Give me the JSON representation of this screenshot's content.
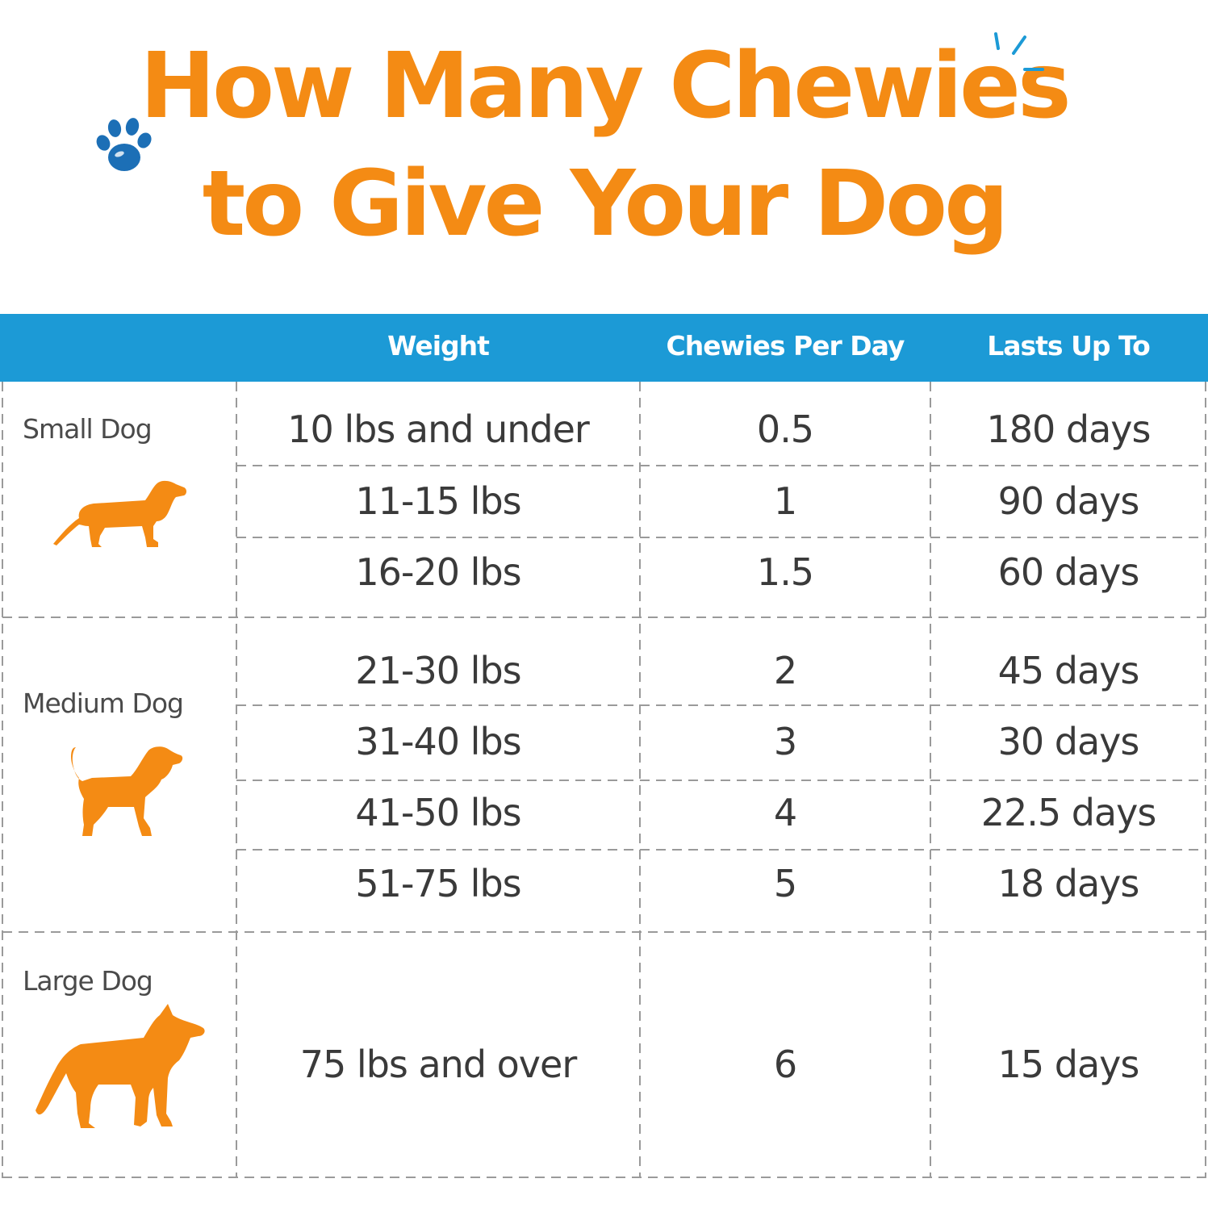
{
  "title": {
    "line1": "How Many Chewies",
    "line2": "to Give Your Dog"
  },
  "colors": {
    "accent_orange": "#f48b14",
    "header_blue": "#1c9ad6",
    "paw_blue": "#1c6fb6",
    "text": "#3a3a3a",
    "divider": "#9a9a9a"
  },
  "icons": [
    "paw-icon",
    "sparkle-icon",
    "small-dog-icon",
    "medium-dog-icon",
    "large-dog-icon"
  ],
  "table": {
    "headers": {
      "weight": "Weight",
      "chewies": "Chewies Per Day",
      "lasts": "Lasts Up To"
    },
    "groups": [
      {
        "label": "Small Dog",
        "rows": [
          {
            "weight": "10 lbs and under",
            "chewies": "0.5",
            "lasts": "180 days"
          },
          {
            "weight": "11-15 lbs",
            "chewies": "1",
            "lasts": "90 days"
          },
          {
            "weight": "16-20 lbs",
            "chewies": "1.5",
            "lasts": "60 days"
          }
        ]
      },
      {
        "label": "Medium Dog",
        "rows": [
          {
            "weight": "21-30 lbs",
            "chewies": "2",
            "lasts": "45 days"
          },
          {
            "weight": "31-40 lbs",
            "chewies": "3",
            "lasts": "30 days"
          },
          {
            "weight": "41-50 lbs",
            "chewies": "4",
            "lasts": "22.5 days"
          },
          {
            "weight": "51-75 lbs",
            "chewies": "5",
            "lasts": "18 days"
          }
        ]
      },
      {
        "label": "Large Dog",
        "rows": [
          {
            "weight": "75 lbs and over",
            "chewies": "6",
            "lasts": "15 days"
          }
        ]
      }
    ]
  }
}
